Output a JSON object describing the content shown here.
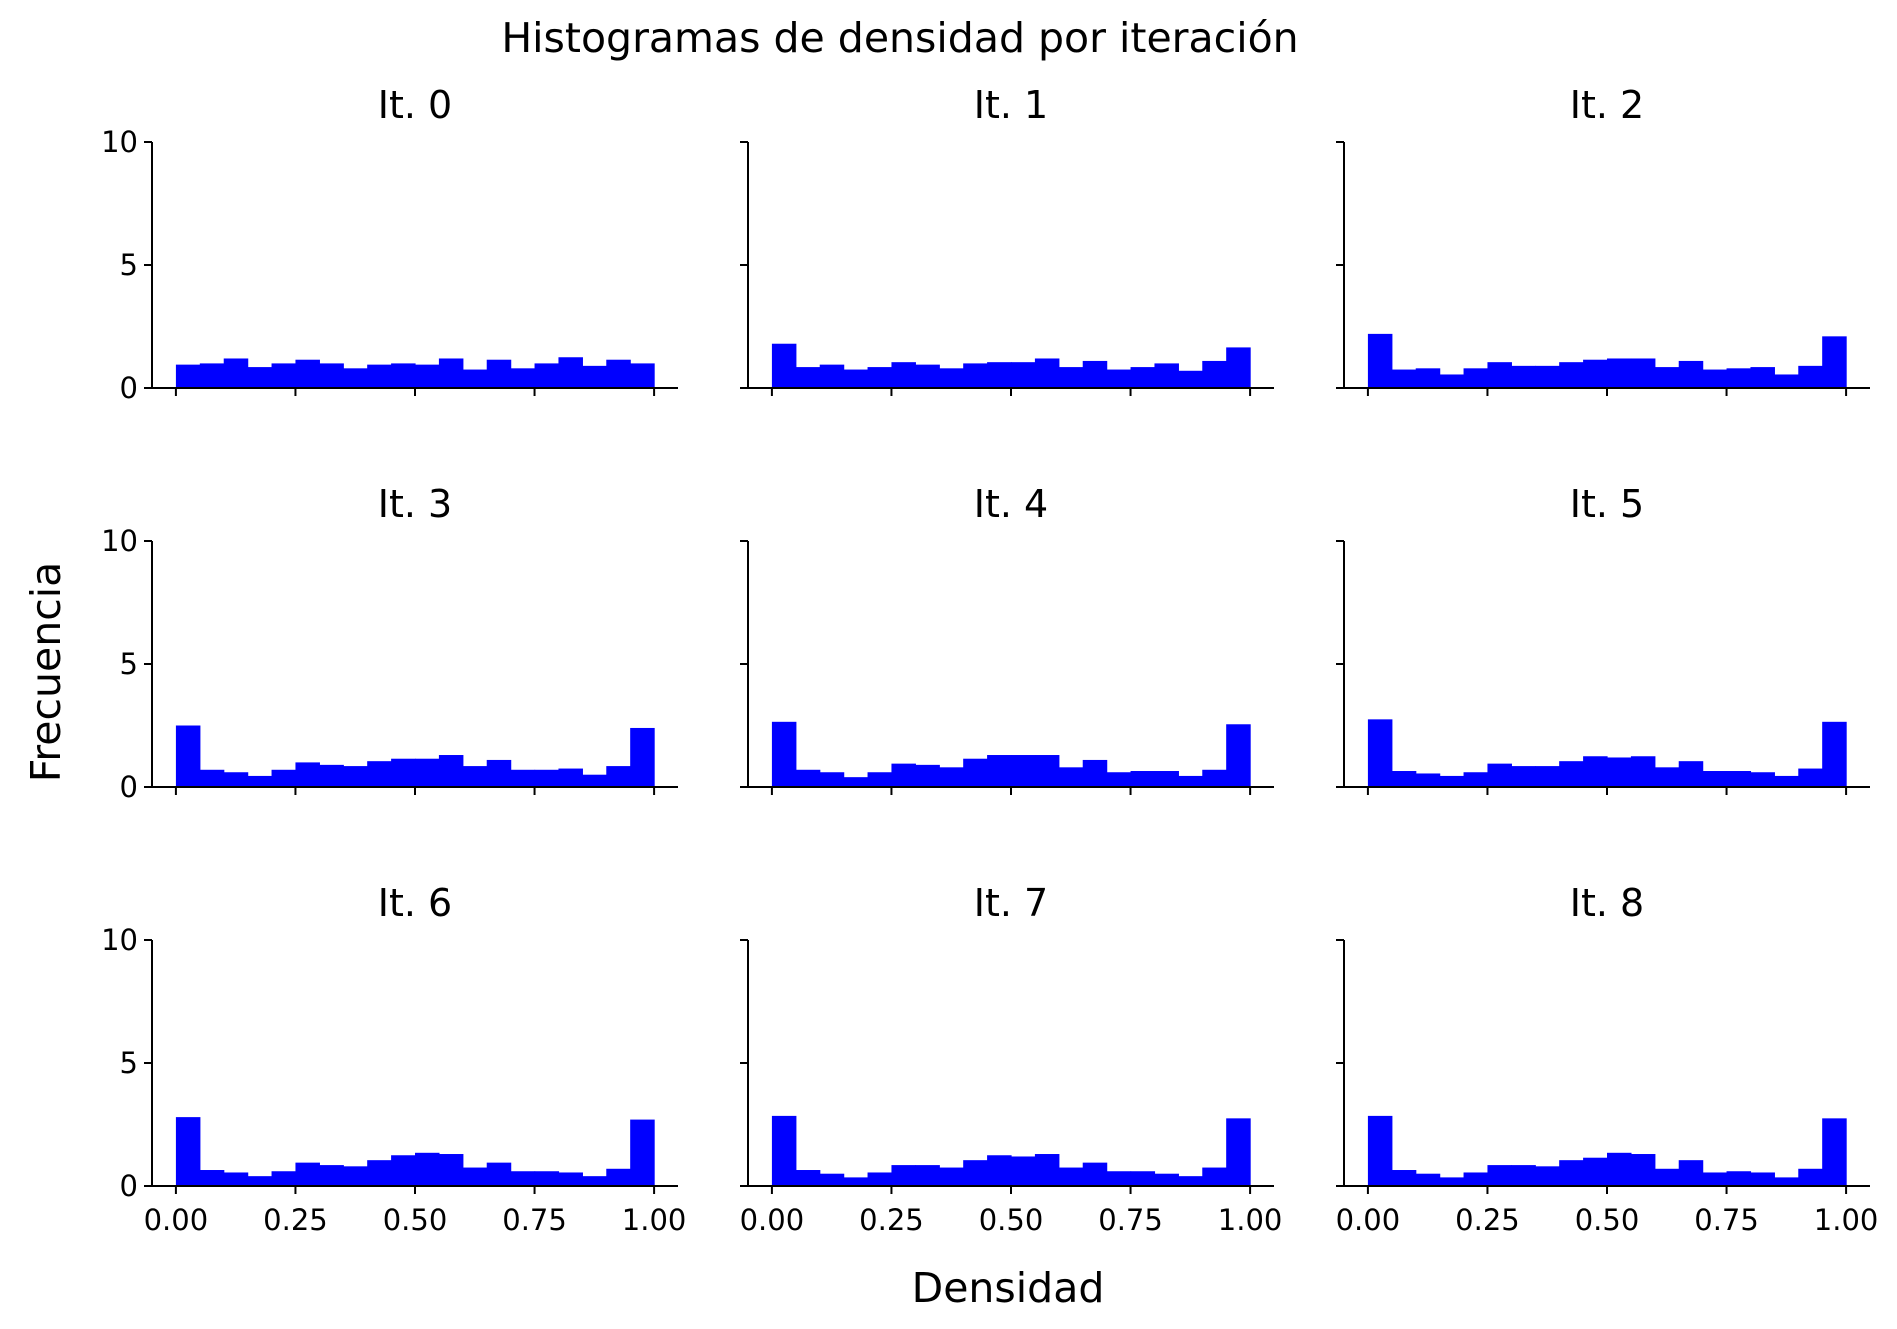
{
  "title": "Histogramas de densidad por iteración",
  "xlabel": "Densidad",
  "ylabel": "Frecuencia",
  "colors": {
    "bars": "#0000ff",
    "axes": "#000000",
    "background": "#ffffff"
  },
  "chart_data": {
    "type": "bar",
    "layout": "3x3 grid of histograms",
    "xlim": [
      -0.05,
      1.05
    ],
    "ylim": [
      0,
      10
    ],
    "x_ticks": [
      "0.00",
      "0.25",
      "0.50",
      "0.75",
      "1.00"
    ],
    "x_tick_values": [
      0,
      0.25,
      0.5,
      0.75,
      1.0
    ],
    "y_ticks": [
      "0",
      "5",
      "10"
    ],
    "y_tick_values": [
      0,
      5,
      10
    ],
    "bin_edges": [
      0,
      0.05,
      0.1,
      0.15,
      0.2,
      0.25,
      0.3,
      0.35,
      0.4,
      0.45,
      0.5,
      0.55,
      0.6,
      0.65,
      0.7,
      0.75,
      0.8,
      0.85,
      0.9,
      0.95,
      1.0
    ],
    "grid": false,
    "panels": [
      {
        "title": "It. 0",
        "values": [
          0.95,
          1.0,
          1.2,
          0.85,
          1.0,
          1.15,
          1.0,
          0.8,
          0.95,
          1.0,
          0.95,
          1.2,
          0.75,
          1.15,
          0.8,
          1.0,
          1.25,
          0.9,
          1.15,
          1.0
        ]
      },
      {
        "title": "It. 1",
        "values": [
          1.8,
          0.85,
          0.95,
          0.75,
          0.85,
          1.05,
          0.95,
          0.8,
          1.0,
          1.05,
          1.05,
          1.2,
          0.85,
          1.1,
          0.75,
          0.85,
          1.0,
          0.7,
          1.1,
          1.65
        ]
      },
      {
        "title": "It. 2",
        "values": [
          2.2,
          0.75,
          0.8,
          0.55,
          0.8,
          1.05,
          0.9,
          0.9,
          1.05,
          1.15,
          1.2,
          1.2,
          0.85,
          1.1,
          0.75,
          0.8,
          0.85,
          0.55,
          0.9,
          2.1
        ]
      },
      {
        "title": "It. 3",
        "values": [
          2.5,
          0.7,
          0.6,
          0.45,
          0.7,
          1.0,
          0.9,
          0.85,
          1.05,
          1.15,
          1.15,
          1.3,
          0.85,
          1.1,
          0.7,
          0.7,
          0.75,
          0.5,
          0.85,
          2.4
        ]
      },
      {
        "title": "It. 4",
        "values": [
          2.65,
          0.7,
          0.6,
          0.4,
          0.6,
          0.95,
          0.9,
          0.8,
          1.15,
          1.3,
          1.3,
          1.3,
          0.8,
          1.1,
          0.6,
          0.65,
          0.65,
          0.45,
          0.7,
          2.55
        ]
      },
      {
        "title": "It. 5",
        "values": [
          2.75,
          0.65,
          0.55,
          0.45,
          0.6,
          0.95,
          0.85,
          0.85,
          1.05,
          1.25,
          1.2,
          1.25,
          0.8,
          1.05,
          0.65,
          0.65,
          0.6,
          0.45,
          0.75,
          2.65
        ]
      },
      {
        "title": "It. 6",
        "values": [
          2.8,
          0.65,
          0.55,
          0.4,
          0.6,
          0.95,
          0.85,
          0.8,
          1.05,
          1.25,
          1.35,
          1.3,
          0.75,
          0.95,
          0.6,
          0.6,
          0.55,
          0.4,
          0.7,
          2.7
        ]
      },
      {
        "title": "It. 7",
        "values": [
          2.85,
          0.65,
          0.5,
          0.35,
          0.55,
          0.85,
          0.85,
          0.75,
          1.05,
          1.25,
          1.2,
          1.3,
          0.75,
          0.95,
          0.6,
          0.6,
          0.5,
          0.4,
          0.75,
          2.75
        ]
      },
      {
        "title": "It. 8",
        "values": [
          2.85,
          0.65,
          0.5,
          0.35,
          0.55,
          0.85,
          0.85,
          0.8,
          1.05,
          1.15,
          1.35,
          1.3,
          0.7,
          1.05,
          0.55,
          0.6,
          0.55,
          0.35,
          0.7,
          2.75
        ]
      }
    ]
  }
}
